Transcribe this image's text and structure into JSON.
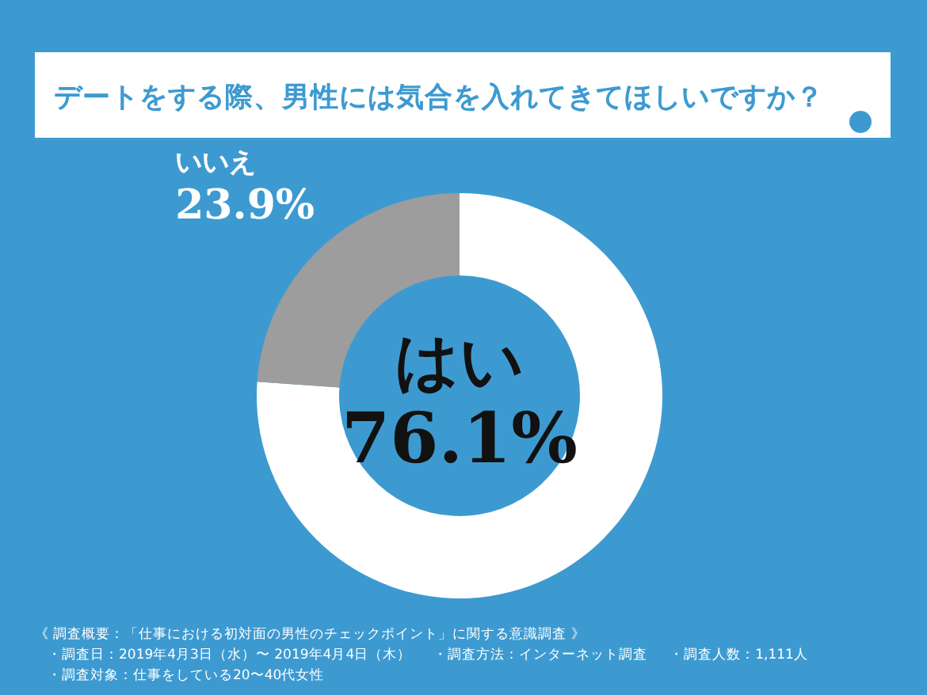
{
  "chart_data": {
    "type": "donut",
    "title": "デートをする際、男性には気合を入れてきてほしいですか？",
    "categories": [
      "はい",
      "いいえ"
    ],
    "values": [
      76.1,
      23.9
    ],
    "colors": [
      "#ffffff",
      "#9d9d9d"
    ],
    "value_labels": [
      "76.1%",
      "23.9%"
    ],
    "annotations": [
      "《 調査概要：「仕事における初対面の男性のチェックポイント」に関する意識調査 》",
      "・調査日：2019年4月3日（水）〜 2019年4月4日（木）",
      "・調査方法：インターネット調査",
      "・調査人数：1,111人",
      "・調査対象：仕事をしている20〜40代女性"
    ]
  }
}
